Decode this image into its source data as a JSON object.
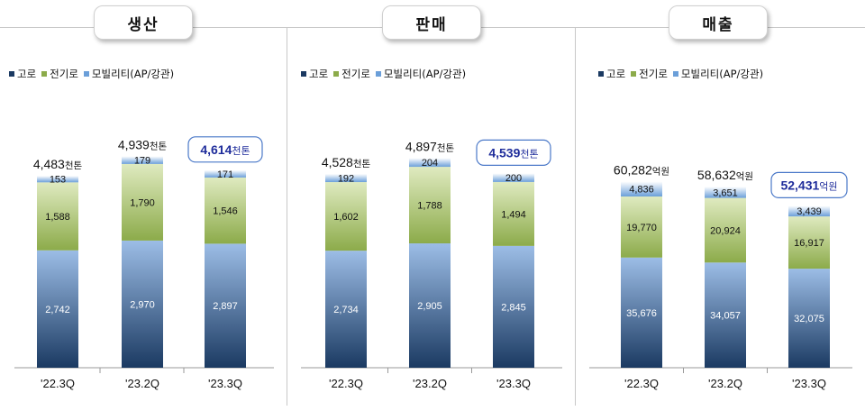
{
  "colors": {
    "blast": "#1b3a62",
    "electric": "#8cab4a",
    "mobility": "#6b9fd9",
    "highlight": "#1f2d9b"
  },
  "legend": {
    "blast_label": "고로",
    "electric_label": "전기로",
    "mobility_label": "모빌리티(AP/강관)"
  },
  "chart_data": [
    {
      "type": "bar",
      "title": "생산",
      "categories": [
        "'22.3Q",
        "'23.2Q",
        "'23.3Q"
      ],
      "series": [
        {
          "name": "고로",
          "values": [
            2742,
            2970,
            2897
          ]
        },
        {
          "name": "전기로",
          "values": [
            1588,
            1790,
            1546
          ]
        },
        {
          "name": "모빌리티(AP/강관)",
          "values": [
            153,
            179,
            171
          ]
        }
      ],
      "totals": [
        4483,
        4939,
        4614
      ],
      "total_labels": [
        "4,483",
        "4,939",
        "4,614"
      ],
      "unit": "천톤",
      "highlight_index": 2
    },
    {
      "type": "bar",
      "title": "판매",
      "categories": [
        "'22.3Q",
        "'23.2Q",
        "'23.3Q"
      ],
      "series": [
        {
          "name": "고로",
          "values": [
            2734,
            2905,
            2845
          ]
        },
        {
          "name": "전기로",
          "values": [
            1602,
            1788,
            1494
          ]
        },
        {
          "name": "모빌리티(AP/강관)",
          "values": [
            192,
            204,
            200
          ]
        }
      ],
      "totals": [
        4528,
        4897,
        4539
      ],
      "total_labels": [
        "4,528",
        "4,897",
        "4,539"
      ],
      "unit": "천톤",
      "highlight_index": 2
    },
    {
      "type": "bar",
      "title": "매출",
      "categories": [
        "'22.3Q",
        "'23.2Q",
        "'23.3Q"
      ],
      "series": [
        {
          "name": "고로",
          "values": [
            35676,
            34057,
            32075
          ]
        },
        {
          "name": "전기로",
          "values": [
            19770,
            20924,
            16917
          ]
        },
        {
          "name": "모빌리티(AP/강관)",
          "values": [
            4836,
            3651,
            3439
          ]
        }
      ],
      "totals": [
        60282,
        58632,
        52431
      ],
      "total_labels": [
        "60,282",
        "58,632",
        "52,431"
      ],
      "unit": "억원",
      "highlight_index": 2
    }
  ]
}
